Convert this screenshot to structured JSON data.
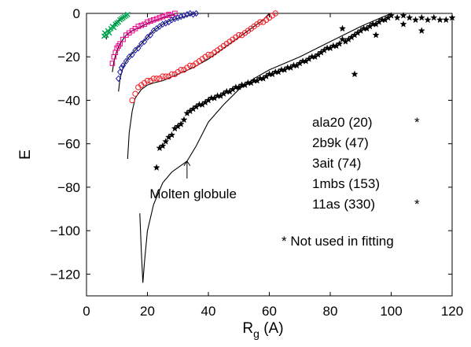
{
  "chart_data": {
    "type": "scatter",
    "xlabel_main": "R",
    "xlabel_sub": "g",
    "xlabel_unit": " (A)",
    "ylabel": "E",
    "xlim": [
      0,
      120
    ],
    "ylim": [
      -130,
      0
    ],
    "xticks": [
      0,
      20,
      40,
      60,
      80,
      100,
      120
    ],
    "yticks": [
      0,
      -20,
      -40,
      -60,
      -80,
      -100,
      -120
    ],
    "xtick_labels": [
      "0",
      "20",
      "40",
      "60",
      "80",
      "100",
      "120"
    ],
    "ytick_labels": [
      "0",
      "−20",
      "−40",
      "−60",
      "−80",
      "−100",
      "−120"
    ],
    "grid": false,
    "series": [
      {
        "name": "ala20 (20)",
        "star": "*",
        "color": "#00a651",
        "marker": "x",
        "curve": [
          [
            6.5,
            -12
          ],
          [
            7,
            -9
          ],
          [
            8,
            -7
          ],
          [
            9,
            -5
          ],
          [
            10,
            -4
          ],
          [
            11,
            -2.5
          ],
          [
            12,
            -1.5
          ],
          [
            13,
            -1
          ]
        ],
        "points": [
          [
            5.8,
            -10.5
          ],
          [
            6,
            -9
          ],
          [
            6.5,
            -10
          ],
          [
            7,
            -8
          ],
          [
            7.5,
            -9
          ],
          [
            8,
            -7
          ],
          [
            8.5,
            -6
          ],
          [
            9,
            -6.5
          ],
          [
            9.5,
            -5
          ],
          [
            10,
            -4.5
          ],
          [
            10.5,
            -4
          ],
          [
            11,
            -3
          ],
          [
            11.5,
            -2.5
          ],
          [
            12,
            -2
          ],
          [
            12.5,
            -1.5
          ],
          [
            13,
            -1
          ],
          [
            13.5,
            -0.5
          ]
        ]
      },
      {
        "name": "2b9k (47)",
        "star": "",
        "color": "#ec008c",
        "marker": "square",
        "curve": [
          [
            8.5,
            -27
          ],
          [
            9,
            -22
          ],
          [
            10,
            -17
          ],
          [
            11,
            -14
          ],
          [
            12,
            -12
          ],
          [
            13,
            -10
          ],
          [
            15,
            -8
          ],
          [
            18,
            -6
          ],
          [
            21,
            -4
          ],
          [
            24,
            -2.5
          ],
          [
            27,
            -1
          ],
          [
            29,
            -0.5
          ]
        ],
        "points": [
          [
            8.5,
            -23
          ],
          [
            9,
            -20
          ],
          [
            9.5,
            -18
          ],
          [
            10,
            -16
          ],
          [
            10.5,
            -15
          ],
          [
            11,
            -14
          ],
          [
            12,
            -12
          ],
          [
            13,
            -10
          ],
          [
            14,
            -9
          ],
          [
            15,
            -8
          ],
          [
            16,
            -7
          ],
          [
            17,
            -6
          ],
          [
            18,
            -5.5
          ],
          [
            19,
            -5
          ],
          [
            20,
            -4
          ],
          [
            21,
            -3.5
          ],
          [
            22,
            -3
          ],
          [
            23,
            -2.5
          ],
          [
            24,
            -2
          ],
          [
            25,
            -1.5
          ],
          [
            26,
            -1
          ],
          [
            27,
            -0.5
          ],
          [
            28,
            -1
          ],
          [
            29,
            0
          ]
        ]
      },
      {
        "name": "3ait (74)",
        "star": "",
        "color": "#1c1ca8",
        "marker": "diamond",
        "curve": [
          [
            10.5,
            -36
          ],
          [
            11,
            -30
          ],
          [
            12,
            -25
          ],
          [
            13,
            -22
          ],
          [
            14,
            -20
          ],
          [
            16,
            -17
          ],
          [
            18,
            -14
          ],
          [
            20,
            -11
          ],
          [
            22,
            -8
          ],
          [
            25,
            -5
          ],
          [
            28,
            -3
          ],
          [
            32,
            -1.5
          ],
          [
            36,
            0
          ]
        ],
        "points": [
          [
            10.5,
            -30
          ],
          [
            11,
            -27
          ],
          [
            11.5,
            -25
          ],
          [
            12,
            -24
          ],
          [
            13,
            -22
          ],
          [
            14,
            -20
          ],
          [
            15,
            -19
          ],
          [
            16,
            -17
          ],
          [
            17,
            -16
          ],
          [
            18,
            -14
          ],
          [
            19,
            -13
          ],
          [
            20,
            -11
          ],
          [
            21,
            -10
          ],
          [
            22,
            -8
          ],
          [
            23,
            -7
          ],
          [
            24,
            -6
          ],
          [
            25,
            -5
          ],
          [
            26,
            -4.5
          ],
          [
            27,
            -4
          ],
          [
            28,
            -3
          ],
          [
            29,
            -2.5
          ],
          [
            30,
            -2
          ],
          [
            31,
            -1.5
          ],
          [
            32,
            -1
          ],
          [
            33,
            -0.5
          ],
          [
            34,
            0
          ],
          [
            35,
            -0.5
          ],
          [
            36,
            0
          ]
        ]
      },
      {
        "name": "1mbs (153)",
        "star": "",
        "color": "#ee1c24",
        "marker": "circle",
        "curve": [
          [
            13.5,
            -67
          ],
          [
            14,
            -55
          ],
          [
            15,
            -45
          ],
          [
            16,
            -39
          ],
          [
            18,
            -35
          ],
          [
            20,
            -33
          ],
          [
            22,
            -32
          ],
          [
            25,
            -31
          ],
          [
            30,
            -28
          ],
          [
            35,
            -25
          ],
          [
            40,
            -21
          ],
          [
            45,
            -16
          ],
          [
            50,
            -11
          ],
          [
            55,
            -6
          ],
          [
            58,
            -3
          ],
          [
            60,
            0
          ]
        ],
        "points": [
          [
            15,
            -40
          ],
          [
            16,
            -37
          ],
          [
            17,
            -34
          ],
          [
            18,
            -33
          ],
          [
            19,
            -32
          ],
          [
            20,
            -31
          ],
          [
            21,
            -31
          ],
          [
            22,
            -30
          ],
          [
            23,
            -30
          ],
          [
            24,
            -30
          ],
          [
            25,
            -29
          ],
          [
            26,
            -29
          ],
          [
            27,
            -29
          ],
          [
            28,
            -28
          ],
          [
            29,
            -28
          ],
          [
            30,
            -27
          ],
          [
            31,
            -26
          ],
          [
            32,
            -26
          ],
          [
            33,
            -25
          ],
          [
            34,
            -24
          ],
          [
            35,
            -24
          ],
          [
            36,
            -23
          ],
          [
            37,
            -22
          ],
          [
            38,
            -21
          ],
          [
            39,
            -20
          ],
          [
            40,
            -19
          ],
          [
            41,
            -19
          ],
          [
            42,
            -18
          ],
          [
            43,
            -17
          ],
          [
            44,
            -16
          ],
          [
            45,
            -15
          ],
          [
            46,
            -14
          ],
          [
            47,
            -13
          ],
          [
            48,
            -12
          ],
          [
            49,
            -11
          ],
          [
            50,
            -10
          ],
          [
            51,
            -10
          ],
          [
            52,
            -9
          ],
          [
            53,
            -8
          ],
          [
            54,
            -7
          ],
          [
            55,
            -6
          ],
          [
            56,
            -5
          ],
          [
            57,
            -4
          ],
          [
            58,
            -4
          ],
          [
            59,
            -3
          ],
          [
            60,
            -2
          ],
          [
            61,
            -1
          ],
          [
            62,
            0
          ]
        ]
      },
      {
        "name": "11as (330)",
        "star": "*",
        "color": "#000000",
        "marker": "star",
        "curve": [
          [
            17.5,
            -92
          ],
          [
            18,
            -110
          ],
          [
            18.5,
            -124
          ],
          [
            19,
            -115
          ],
          [
            20,
            -100
          ],
          [
            22,
            -88
          ],
          [
            25,
            -78
          ],
          [
            28,
            -73
          ],
          [
            30,
            -71
          ],
          [
            33,
            -68
          ],
          [
            36,
            -61
          ],
          [
            40,
            -50
          ],
          [
            45,
            -42
          ],
          [
            50,
            -35
          ],
          [
            55,
            -30
          ],
          [
            60,
            -26
          ],
          [
            70,
            -20
          ],
          [
            80,
            -13
          ],
          [
            90,
            -6
          ],
          [
            95,
            -3
          ],
          [
            100,
            0
          ]
        ],
        "points": [
          [
            23,
            -71
          ],
          [
            24,
            -62
          ],
          [
            25,
            -61
          ],
          [
            26,
            -59
          ],
          [
            27,
            -57
          ],
          [
            28,
            -56
          ],
          [
            29,
            -53
          ],
          [
            30,
            -52
          ],
          [
            31,
            -51
          ],
          [
            32,
            -49
          ],
          [
            33,
            -46
          ],
          [
            34,
            -45
          ],
          [
            35,
            -44
          ],
          [
            36,
            -43
          ],
          [
            37,
            -42
          ],
          [
            38,
            -42
          ],
          [
            39,
            -41
          ],
          [
            40,
            -40
          ],
          [
            41,
            -39
          ],
          [
            42,
            -39
          ],
          [
            43,
            -38
          ],
          [
            44,
            -38
          ],
          [
            45,
            -37
          ],
          [
            46,
            -36
          ],
          [
            47,
            -36
          ],
          [
            48,
            -35
          ],
          [
            49,
            -34
          ],
          [
            50,
            -34
          ],
          [
            51,
            -33
          ],
          [
            52,
            -33
          ],
          [
            53,
            -32
          ],
          [
            54,
            -32
          ],
          [
            55,
            -31
          ],
          [
            56,
            -31
          ],
          [
            57,
            -30
          ],
          [
            58,
            -30
          ],
          [
            59,
            -29
          ],
          [
            60,
            -28
          ],
          [
            61,
            -28
          ],
          [
            62,
            -27
          ],
          [
            63,
            -27
          ],
          [
            64,
            -26
          ],
          [
            65,
            -26
          ],
          [
            66,
            -25
          ],
          [
            67,
            -25
          ],
          [
            68,
            -24
          ],
          [
            69,
            -24
          ],
          [
            70,
            -23
          ],
          [
            71,
            -22
          ],
          [
            72,
            -22
          ],
          [
            73,
            -21
          ],
          [
            74,
            -20
          ],
          [
            75,
            -20
          ],
          [
            76,
            -19
          ],
          [
            77,
            -18
          ],
          [
            78,
            -17
          ],
          [
            79,
            -16
          ],
          [
            80,
            -16
          ],
          [
            81,
            -15
          ],
          [
            82,
            -15
          ],
          [
            83,
            -14
          ],
          [
            84,
            -12
          ],
          [
            85,
            -13
          ],
          [
            86,
            -12
          ],
          [
            87,
            -11
          ],
          [
            88,
            -10
          ],
          [
            89,
            -9
          ],
          [
            90,
            -8
          ],
          [
            91,
            -7
          ],
          [
            92,
            -7
          ],
          [
            93,
            -6
          ],
          [
            94,
            -5
          ],
          [
            95,
            -5
          ],
          [
            96,
            -4
          ],
          [
            97,
            -3
          ],
          [
            98,
            -3
          ],
          [
            99,
            -2
          ],
          [
            100,
            -1
          ],
          [
            102,
            -2
          ],
          [
            104,
            -1
          ],
          [
            106,
            -2
          ],
          [
            108,
            -3
          ],
          [
            110,
            -2
          ],
          [
            112,
            -3
          ],
          [
            114,
            -2
          ],
          [
            116,
            -3
          ],
          [
            118,
            -3
          ],
          [
            120,
            -2
          ],
          [
            88,
            -28
          ],
          [
            104,
            -5
          ],
          [
            110,
            -8
          ],
          [
            95,
            -10
          ],
          [
            84,
            -7
          ]
        ]
      }
    ],
    "annotations": [
      {
        "text": "Molten globule",
        "x": 35,
        "y": -83,
        "arrow_to": [
          33,
          -68
        ],
        "arrow_from": [
          33,
          -76
        ]
      }
    ],
    "footnote": "* Not used in fitting"
  }
}
